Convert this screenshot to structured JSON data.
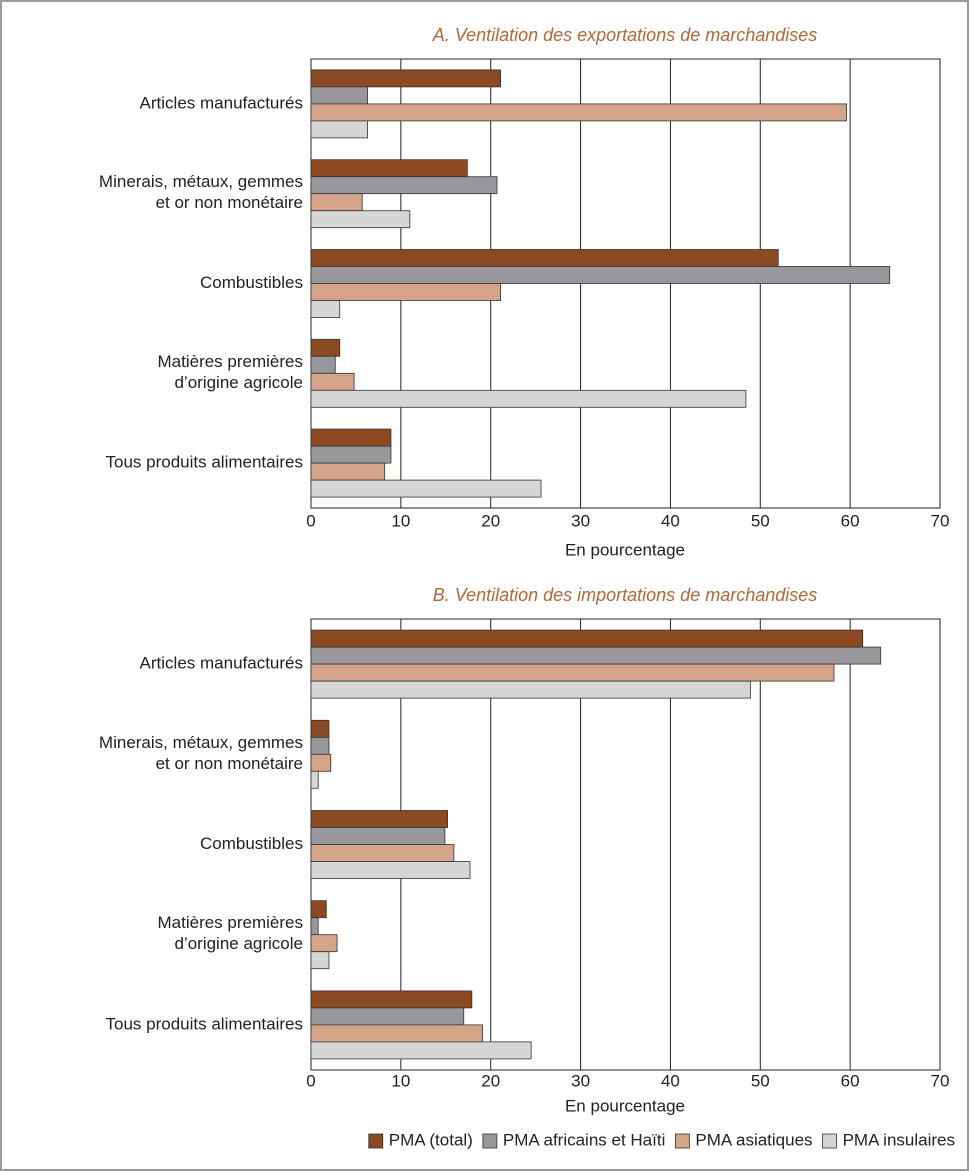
{
  "chart_data": [
    {
      "type": "bar",
      "orientation": "horizontal",
      "title": "A. Ventilation des exportations de marchandises",
      "xlabel": "En pourcentage",
      "categories": [
        "Articles manufacturés",
        "Minerais, métaux, gemmes\net or non monétaire",
        "Combustibles",
        "Matières premières\nd’origine agricole",
        "Tous produits alimentaires"
      ],
      "series": [
        {
          "color": "#8c4a22",
          "values": [
            21.1,
            17.4,
            52.0,
            3.2,
            8.9
          ]
        },
        {
          "color": "#98989c",
          "values": [
            6.3,
            20.7,
            64.4,
            2.7,
            8.9
          ]
        },
        {
          "color": "#d4a489",
          "values": [
            59.6,
            5.7,
            21.1,
            4.8,
            8.2
          ]
        },
        {
          "color": "#d6d6d6",
          "values": [
            6.3,
            11.0,
            3.2,
            48.4,
            25.6
          ]
        }
      ],
      "xlim": [
        0,
        70
      ],
      "xticks": [
        0,
        10,
        20,
        30,
        40,
        50,
        60,
        70
      ],
      "grid": true
    },
    {
      "type": "bar",
      "orientation": "horizontal",
      "title": "B. Ventilation des importations de marchandises",
      "xlabel": "En pourcentage",
      "categories": [
        "Articles manufacturés",
        "Minerais, métaux, gemmes\net or non monétaire",
        "Combustibles",
        "Matières premières\nd’origine agricole",
        "Tous produits alimentaires"
      ],
      "series": [
        {
          "name": "PMA (total)",
          "color": "#8c4a22",
          "values": [
            61.4,
            2.0,
            15.2,
            1.7,
            17.9
          ]
        },
        {
          "name": "PMA africains et Haïti",
          "color": "#98989c",
          "values": [
            63.4,
            2.0,
            14.9,
            0.8,
            17.0
          ]
        },
        {
          "name": "PMA asiatiques",
          "color": "#d4a489",
          "values": [
            58.2,
            2.2,
            15.9,
            2.9,
            19.1
          ]
        },
        {
          "name": "PMA insulaires",
          "color": "#d6d6d6",
          "values": [
            48.9,
            0.8,
            17.7,
            2.0,
            24.5
          ]
        }
      ],
      "xlim": [
        0,
        70
      ],
      "xticks": [
        0,
        10,
        20,
        30,
        40,
        50,
        60,
        70
      ],
      "grid": true,
      "legend": "bottom-right"
    }
  ]
}
